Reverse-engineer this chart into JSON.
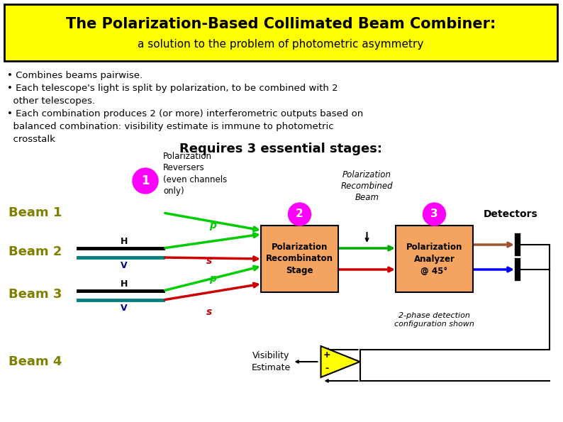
{
  "title_line1": "The Polarization-Based Collimated Beam Combiner:",
  "title_line2": "a solution to the problem of photometric asymmetry",
  "title_bg": "#FFFF00",
  "title_border": "#000000",
  "requires_text": "Requires 3 essential stages:",
  "beam_labels": [
    "Beam 1",
    "Beam 2",
    "Beam 3",
    "Beam 4"
  ],
  "beam_color": "#808000",
  "circle_color": "#FF00FF",
  "circle_text_color": "#FFFFFF",
  "pol_rev_text": "Polarization\nReversers\n(even channels\nonly)",
  "pol_recomb_text": "Polarization\nRecombinaton\nStage",
  "pol_analyzer_text": "Polarization\nAnalyzer\n@ 45°",
  "pol_recomb_beam_text": "Polarization\nRecombined\nBeam",
  "detectors_text": "Detectors",
  "visibility_text": "Visibility\nEstimate",
  "phase_detect_text": "2-phase detection\nconfiguration shown",
  "box_fill": "#F4A460",
  "arrow_green": "#00CC00",
  "arrow_red": "#CC0000",
  "arrow_blue": "#0000FF",
  "arrow_brown": "#A0522D",
  "bg_color": "#FFFFFF"
}
